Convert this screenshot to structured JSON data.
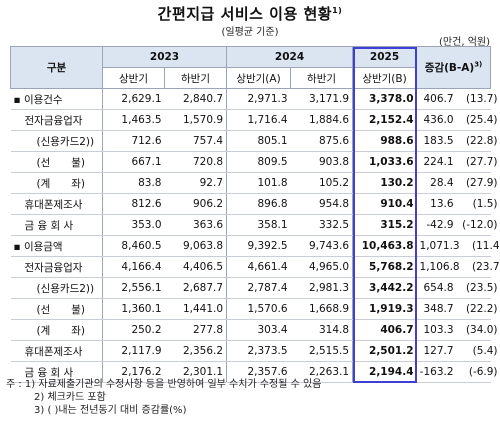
{
  "title": "간편지급 서비스 이용 현황",
  "title_note": "1)",
  "subtitle": "(일평균 기준)",
  "unit": "(만건, 억원)",
  "headers": {
    "category": "구분",
    "y2023": "2023",
    "y2024": "2024",
    "y2025": "2025",
    "change": "증감(B-A)",
    "change_note": "3)",
    "h1_2023": "상반기",
    "h2_2023": "하반기",
    "h1_2024": "상반기(A)",
    "h2_2024": "하반기",
    "h1_2025": "상반기(B)"
  },
  "rows": [
    {
      "label": "▪ 이용건수",
      "level": 0,
      "v": [
        "2,629.1",
        "2,840.7",
        "2,971.3",
        "3,171.9",
        "3,378.0"
      ],
      "chg": "406.7",
      "rate": "(13.7)"
    },
    {
      "label": "전자금융업자",
      "level": 1,
      "v": [
        "1,463.5",
        "1,570.9",
        "1,716.4",
        "1,884.6",
        "2,152.4"
      ],
      "chg": "436.0",
      "rate": "(25.4)"
    },
    {
      "label": "(신용카드2))",
      "level": 2,
      "v": [
        "712.6",
        "757.4",
        "805.1",
        "875.6",
        "988.6"
      ],
      "chg": "183.5",
      "rate": "(22.8)"
    },
    {
      "label": "(선　　불)",
      "level": 2,
      "v": [
        "667.1",
        "720.8",
        "809.5",
        "903.8",
        "1,033.6"
      ],
      "chg": "224.1",
      "rate": "(27.7)"
    },
    {
      "label": "(계　　좌)",
      "level": 2,
      "v": [
        "83.8",
        "92.7",
        "101.8",
        "105.2",
        "130.2"
      ],
      "chg": "28.4",
      "rate": "(27.9)"
    },
    {
      "label": "휴대폰제조사",
      "level": 1,
      "v": [
        "812.6",
        "906.2",
        "896.8",
        "954.8",
        "910.4"
      ],
      "chg": "13.6",
      "rate": "(1.5)"
    },
    {
      "label": "금 융 회 사",
      "level": 1,
      "v": [
        "353.0",
        "363.6",
        "358.1",
        "332.5",
        "315.2"
      ],
      "chg": "-42.9",
      "rate": "(-12.0)"
    },
    {
      "label": "▪ 이용금액",
      "level": 0,
      "v": [
        "8,460.5",
        "9,063.8",
        "9,392.5",
        "9,743.6",
        "10,463.8"
      ],
      "chg": "1,071.3",
      "rate": "(11.4)"
    },
    {
      "label": "전자금융업자",
      "level": 1,
      "v": [
        "4,166.4",
        "4,406.5",
        "4,661.4",
        "4,965.0",
        "5,768.2"
      ],
      "chg": "1,106.8",
      "rate": "(23.7)"
    },
    {
      "label": "(신용카드2))",
      "level": 2,
      "v": [
        "2,556.1",
        "2,687.7",
        "2,787.4",
        "2,981.3",
        "3,442.2"
      ],
      "chg": "654.8",
      "rate": "(23.5)"
    },
    {
      "label": "(선　　불)",
      "level": 2,
      "v": [
        "1,360.1",
        "1,441.0",
        "1,570.6",
        "1,668.9",
        "1,919.3"
      ],
      "chg": "348.7",
      "rate": "(22.2)"
    },
    {
      "label": "(계　　좌)",
      "level": 2,
      "v": [
        "250.2",
        "277.8",
        "303.4",
        "314.8",
        "406.7"
      ],
      "chg": "103.3",
      "rate": "(34.0)"
    },
    {
      "label": "휴대폰제조사",
      "level": 1,
      "v": [
        "2,117.9",
        "2,356.2",
        "2,373.5",
        "2,515.5",
        "2,501.2"
      ],
      "chg": "127.7",
      "rate": "(5.4)"
    },
    {
      "label": "금 융 회 사",
      "level": 1,
      "v": [
        "2,176.2",
        "2,301.1",
        "2,357.6",
        "2,263.1",
        "2,194.4"
      ],
      "chg": "-163.2",
      "rate": "(-6.9)"
    }
  ],
  "notes": [
    "주 : 1) 자료제출기관의 수정사항 등을 반영하여 일부 수치가 수정될 수 있음",
    "2) 체크카드 포함",
    "3) ( )내는 전년동기 대비 증감률(%)"
  ],
  "highlight_color": "#3f3fd6",
  "header_color": "#dbe5f1"
}
